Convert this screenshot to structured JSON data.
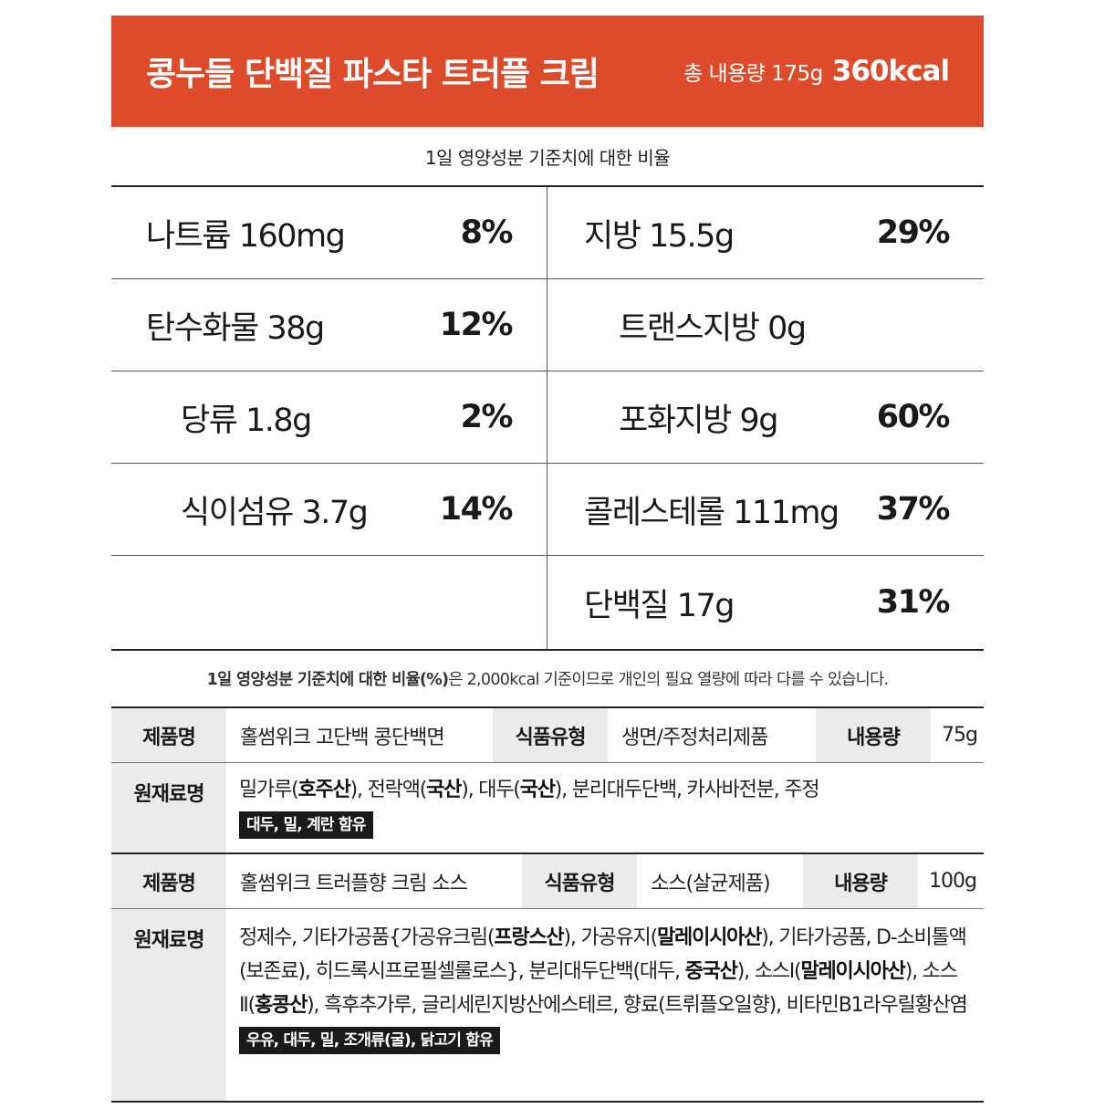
{
  "header": {
    "title": "콩누들 단백질 파스타 트러플 크림",
    "amount": "총 내용량 175g",
    "kcal": "360kcal",
    "bg_color": "#de4b2a"
  },
  "dv_caption": "1일 영양성분 기준치에 대한 비율",
  "nutrients": {
    "sodium": {
      "label": "나트륨 160mg",
      "pct": "8%"
    },
    "fat": {
      "label": "지방 15.5g",
      "pct": "29%"
    },
    "carbs": {
      "label": "탄수화물 38g",
      "pct": "12%"
    },
    "trans_fat": {
      "label": "트랜스지방 0g",
      "pct": ""
    },
    "sugar": {
      "label": "당류 1.8g",
      "pct": "2%"
    },
    "sat_fat": {
      "label": "포화지방 9g",
      "pct": "60%"
    },
    "fiber": {
      "label": "식이섬유 3.7g",
      "pct": "14%"
    },
    "cholesterol": {
      "label": "콜레스테롤 111mg",
      "pct": "37%"
    },
    "protein": {
      "label": "단백질 17g",
      "pct": "31%"
    }
  },
  "footnote": {
    "bold": "1일 영양성분 기준치에 대한 비율(%)",
    "rest": "은 2,000kcal 기준이므로 개인의 필요 열량에 따라 다를 수 있습니다."
  },
  "products": [
    {
      "name_label": "제품명",
      "name": "홀썸위크 고단백 콩단백면",
      "type_label": "식품유형",
      "type": "생면/주정처리제품",
      "amount_label": "내용량",
      "amount": "75g",
      "ingredients_label": "원재료명",
      "allergen": "대두, 밀, 계란 함유"
    },
    {
      "name_label": "제품명",
      "name": "홀썸위크 트러플향 크림 소스",
      "type_label": "식품유형",
      "type": "소스(살균제품)",
      "amount_label": "내용량",
      "amount": "100g",
      "ingredients_label": "원재료명",
      "allergen": "우유, 대두, 밀, 조개류(굴), 닭고기 함유"
    }
  ],
  "ingredients_1": {
    "t1": "밀가루(",
    "b1": "호주산",
    "t2": "), 전락액(",
    "b2": "국산",
    "t3": "), 대두(",
    "b3": "국산",
    "t4": "), 분리대두단백, 카사바전분, 주정"
  },
  "ingredients_2": {
    "t1": "정제수, 기타가공품{가공유크림(",
    "b1": "프랑스산",
    "t2": "), 가공유지(",
    "b2": "말레이시아산",
    "t3": "), 기타가공품, D-소비톨액(보존료), 히드록시프로필셀룰로스}, 분리대두단백(대두, ",
    "b3": "중국산",
    "t4": "), 소스Ⅰ(",
    "b4": "말레이시아산",
    "t5": "), 소스Ⅱ(",
    "b5": "홍콩산",
    "t6": "), 흑후추가루, 글리세린지방산에스테르, 향료(트뤼플오일향), 비타민B1라우릴황산염"
  }
}
